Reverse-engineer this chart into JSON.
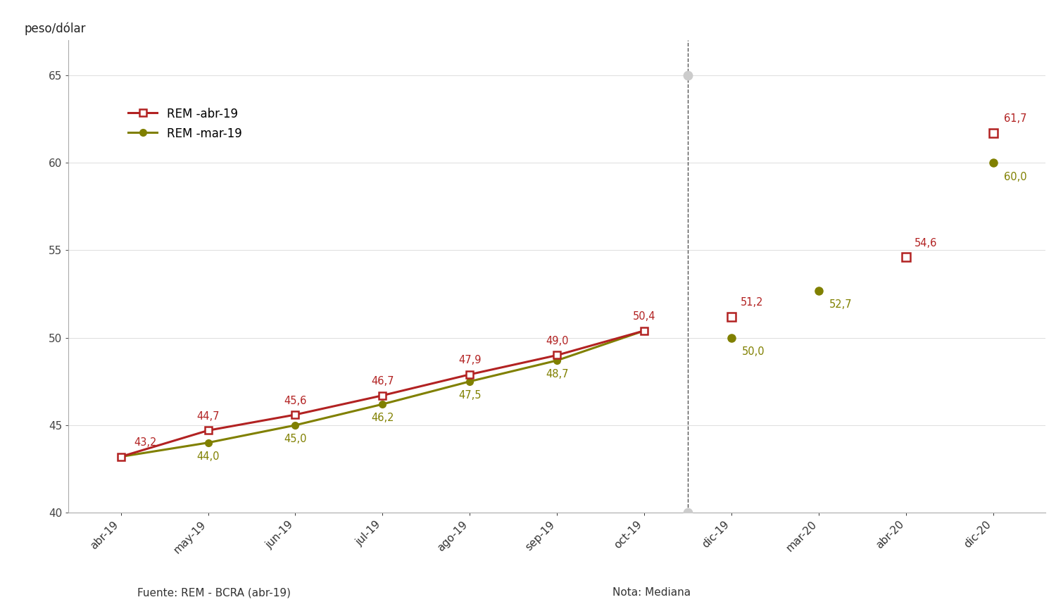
{
  "background_color": "#ffffff",
  "ylabel": "peso/dólar",
  "ylim": [
    40,
    67
  ],
  "yticks": [
    40,
    45,
    50,
    55,
    60,
    65
  ],
  "xlabel_left": "Fuente: REM - BCRA (abr-19)",
  "xlabel_right": "Nota: Mediana",
  "rem_abr_connected_labels": [
    "abr-19",
    "may-19",
    "jun-19",
    "jul-19",
    "ago-19",
    "sep-19",
    "oct-19"
  ],
  "rem_abr_connected_values": [
    43.2,
    44.7,
    45.6,
    46.7,
    47.9,
    49.0,
    50.4
  ],
  "rem_abr_dot_labels": [
    "dic-19",
    "abr-20",
    "dic-20"
  ],
  "rem_abr_dot_values": [
    51.2,
    54.6,
    61.7
  ],
  "rem_mar_connected_labels": [
    "abr-19",
    "may-19",
    "jun-19",
    "jul-19",
    "ago-19",
    "sep-19",
    "oct-19"
  ],
  "rem_mar_connected_values": [
    43.2,
    44.0,
    45.0,
    46.2,
    47.5,
    48.7,
    50.4
  ],
  "rem_mar_dot_labels": [
    "dic-19",
    "mar-20",
    "dic-20"
  ],
  "rem_mar_dot_values": [
    50.0,
    52.7,
    60.0
  ],
  "x_tick_labels": [
    "abr-19",
    "may-19",
    "jun-19",
    "jul-19",
    "ago-19",
    "sep-19",
    "oct-19",
    "dic-19",
    "mar-20",
    "abr-20",
    "dic-20"
  ],
  "color_red": "#b22222",
  "color_olive": "#808000",
  "legend_label_red": "REM -abr-19",
  "legend_label_olive": "REM -mar-19",
  "annot_red_above": {
    "abr-19": [
      0,
      43.2,
      "43,2"
    ],
    "may-19": [
      1,
      44.7,
      "44,7"
    ],
    "jun-19": [
      2,
      45.6,
      "45,6"
    ],
    "jul-19": [
      3,
      46.7,
      "46,7"
    ],
    "ago-19": [
      4,
      47.9,
      "47,9"
    ],
    "sep-19": [
      5,
      49.0,
      "49,0"
    ],
    "oct-19": [
      6,
      50.4,
      "50,4"
    ],
    "dic-19": [
      7,
      51.2,
      "51,2"
    ],
    "abr-20": [
      9,
      54.6,
      "54,6"
    ],
    "dic-20": [
      10,
      61.7,
      "61,7"
    ]
  },
  "annot_olive_below": {
    "may-19": [
      1,
      44.0,
      "44,0"
    ],
    "jun-19": [
      2,
      45.0,
      "45,0"
    ],
    "jul-19": [
      3,
      46.2,
      "46,2"
    ],
    "ago-19": [
      4,
      47.5,
      "47,5"
    ],
    "sep-19": [
      5,
      48.7,
      "48,7"
    ],
    "dic-19": [
      7,
      50.0,
      "50,0"
    ],
    "mar-20": [
      8,
      52.7,
      "52,7"
    ],
    "dic-20": [
      10,
      60.0,
      "60,0"
    ]
  }
}
